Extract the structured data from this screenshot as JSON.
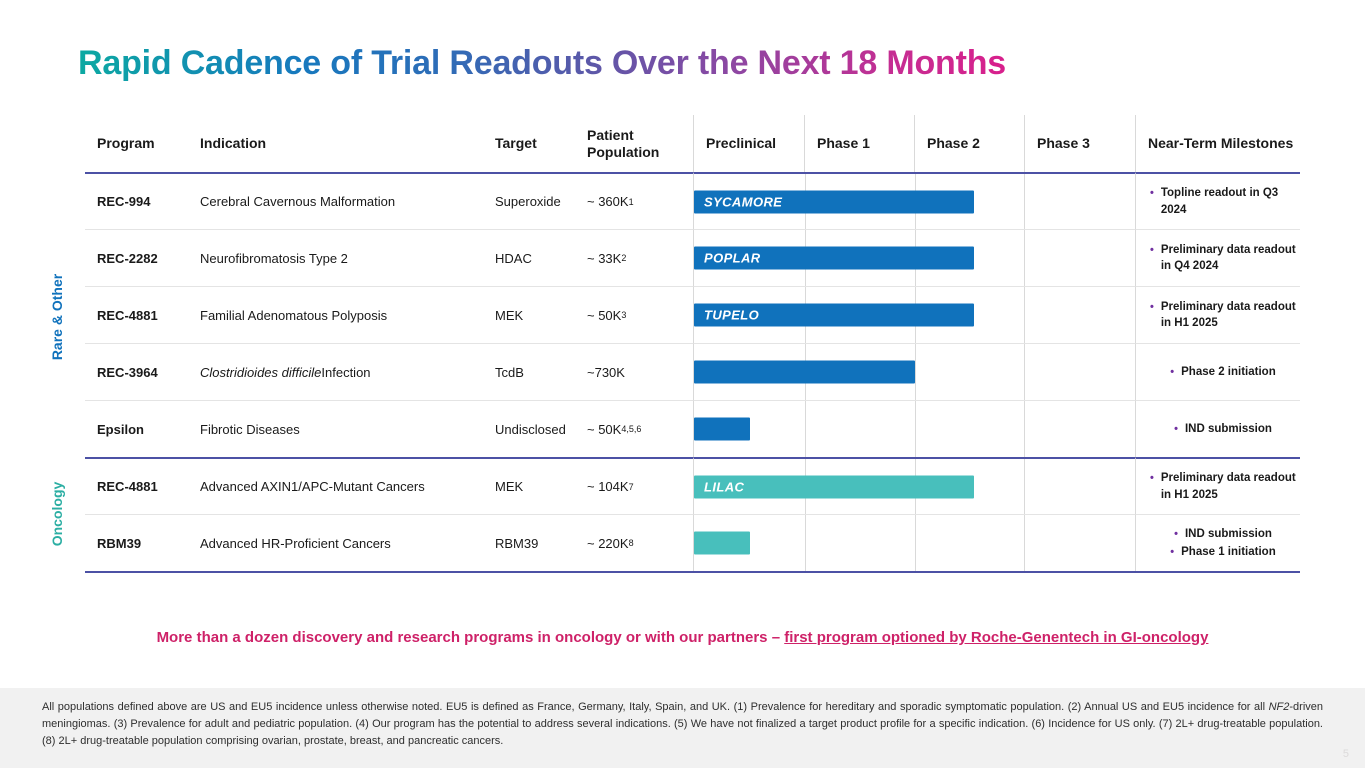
{
  "slide": {
    "title": "Rapid Cadence of Trial Readouts Over the Next 18 Months",
    "page_number": "5"
  },
  "colors": {
    "blue": "#1072BC",
    "teal": "#48BFBC",
    "purple_bullet": "#7030A0",
    "section_rare": "#1072BC",
    "section_oncology": "#2BAEA3",
    "magenta": "#CE2168",
    "divider_purple": "#4C51A5"
  },
  "sections": [
    {
      "label": "Rare & Other"
    },
    {
      "label": "Oncology"
    }
  ],
  "table": {
    "headers": [
      "Program",
      "Indication",
      "Target",
      "Patient Population",
      "Preclinical",
      "Phase 1",
      "Phase 2",
      "Phase 3",
      "Near-Term Milestones"
    ],
    "rows": [
      {
        "program": "REC-994",
        "indication": "Cerebral Cavernous Malformation",
        "target": "Superoxide",
        "population": "~ 360K",
        "population_sup": "1",
        "bar": {
          "label": "SYCAMORE",
          "color": "blue",
          "width_pct": 63.4
        },
        "milestones": [
          "Topline readout in Q3 2024"
        ]
      },
      {
        "program": "REC-2282",
        "indication": "Neurofibromatosis Type 2",
        "target": "HDAC",
        "population": "~ 33K",
        "population_sup": "2",
        "bar": {
          "label": "POPLAR",
          "color": "blue",
          "width_pct": 63.4
        },
        "milestones": [
          "Preliminary data readout in Q4 2024"
        ]
      },
      {
        "program": "REC-4881",
        "indication": "Familial Adenomatous Polyposis",
        "target": "MEK",
        "population": "~ 50K",
        "population_sup": "3",
        "bar": {
          "label": "TUPELO",
          "color": "blue",
          "width_pct": 63.4
        },
        "milestones": [
          "Preliminary data readout in H1 2025"
        ]
      },
      {
        "program": "REC-3964",
        "indication_em": "Clostridioides difficile ",
        "indication": "Infection",
        "target": "TcdB",
        "population": "~730K",
        "bar": {
          "label": "",
          "color": "blue",
          "width_pct": 50
        },
        "milestones": [
          "Phase 2 initiation"
        ]
      },
      {
        "program": "Epsilon",
        "indication": "Fibrotic Diseases",
        "target": "Undisclosed",
        "population": "~ 50K",
        "population_sup": "4,5,6",
        "bar": {
          "label": "",
          "color": "blue",
          "width_pct": 12.8
        },
        "milestones": [
          "IND submission"
        ]
      },
      {
        "program": "REC-4881",
        "indication": "Advanced AXIN1/APC-Mutant Cancers",
        "target": "MEK",
        "population": "~ 104K",
        "population_sup": "7",
        "bar": {
          "label": "LILAC",
          "color": "teal",
          "width_pct": 63.6
        },
        "milestones": [
          "Preliminary data readout in H1 2025"
        ]
      },
      {
        "program": "RBM39",
        "indication": "Advanced HR-Proficient Cancers",
        "target": "RBM39",
        "population": "~ 220K",
        "population_sup": "8",
        "bar": {
          "label": "",
          "color": "teal",
          "width_pct": 12.8
        },
        "milestones": [
          "IND submission",
          "Phase 1 initiation"
        ]
      }
    ]
  },
  "statement": {
    "lead": "More than a dozen discovery and research programs in oncology or with our partners – ",
    "underlined": "first program optioned by Roche-Genentech in GI-oncology"
  },
  "footer": {
    "segments": [
      {
        "text": "All populations defined above are US and EU5 incidence unless otherwise noted. EU5 is defined as France, Germany, Italy, Spain, and UK. (1) Prevalence for hereditary and sporadic symptomatic population. (2) Annual US and EU5 incidence for all ",
        "italic": false
      },
      {
        "text": "NF2",
        "italic": true
      },
      {
        "text": "-driven meningiomas. (3) Prevalence for adult and pediatric population. (4) Our program has the potential to address several indications. (5) We have not finalized a target product profile for a specific indication. (6) Incidence for US only. (7) 2L+ drug-treatable population. (8) 2L+ drug-treatable population comprising ovarian, prostate, breast, and pancreatic cancers.",
        "italic": false
      }
    ]
  }
}
